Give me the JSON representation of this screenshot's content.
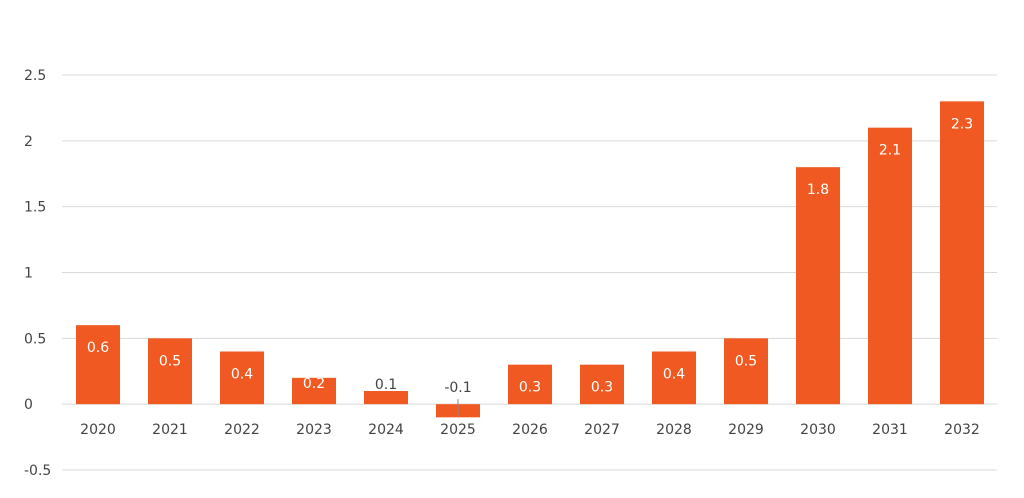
{
  "chart_data": {
    "type": "bar",
    "categories": [
      "2020",
      "2021",
      "2022",
      "2023",
      "2024",
      "2025",
      "2026",
      "2027",
      "2028",
      "2029",
      "2030",
      "2031",
      "2032"
    ],
    "values": [
      0.6,
      0.5,
      0.4,
      0.2,
      0.1,
      -0.1,
      0.3,
      0.3,
      0.4,
      0.5,
      1.8,
      2.1,
      2.3
    ],
    "data_labels": [
      "0.6",
      "0.5",
      "0.4",
      "0.2",
      "0.1",
      "-0.1",
      "0.3",
      "0.3",
      "0.4",
      "0.5",
      "1.8",
      "2.1",
      "2.3"
    ],
    "y_ticks": [
      "-0.5",
      "0",
      "0.5",
      "1",
      "1.5",
      "2",
      "2.5"
    ],
    "y_tick_values": [
      -0.5,
      0,
      0.5,
      1,
      1.5,
      2,
      2.5
    ],
    "ylim": [
      -0.5,
      2.5
    ],
    "title": "",
    "xlabel": "",
    "ylabel": "",
    "grid": true,
    "legend": "none",
    "bar_color": "#f05a22",
    "label_color_inside": "#ffffff",
    "label_color_outside": "#444444",
    "grid_color": "#d9d9d9"
  }
}
